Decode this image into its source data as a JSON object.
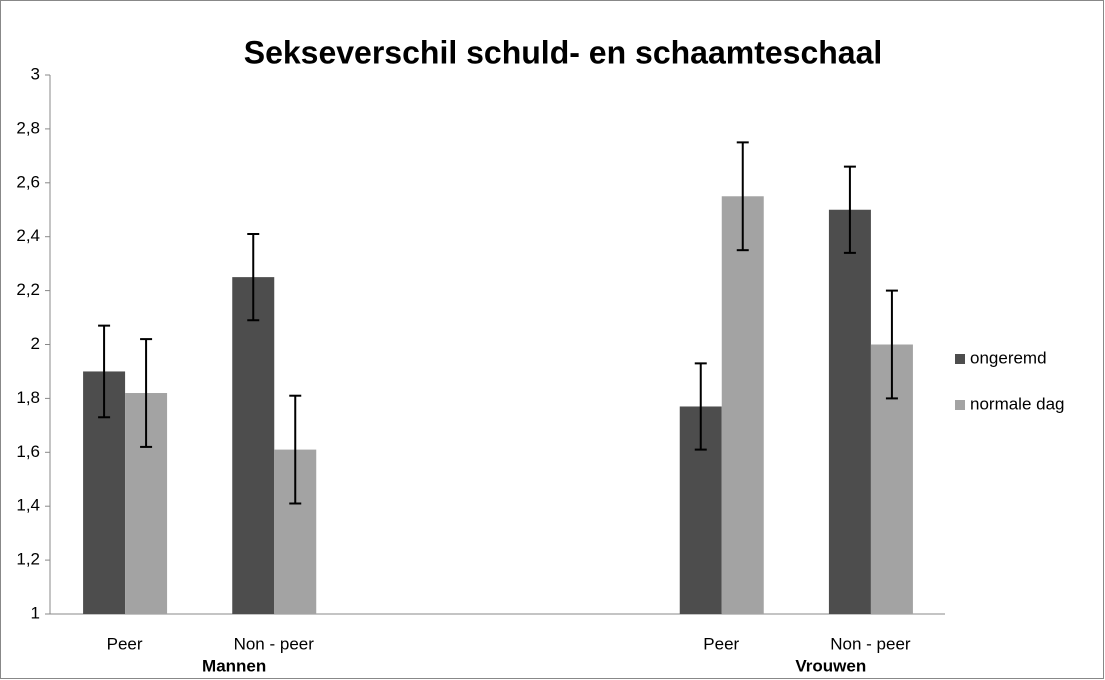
{
  "chart_data": {
    "type": "bar",
    "title": "Sekseverschil schuld- en schaamteschaal",
    "categories": [
      "Peer",
      "Non - peer",
      null,
      null,
      "Peer",
      "Non - peer"
    ],
    "groups": [
      "Mannen",
      "Vrouwen"
    ],
    "series": [
      {
        "name": "ongeremd",
        "color": "#4d4d4d",
        "values": [
          1.9,
          2.25,
          null,
          null,
          1.77,
          2.5
        ],
        "errors": [
          0.17,
          0.16,
          null,
          null,
          0.16,
          0.16
        ]
      },
      {
        "name": "normale dag",
        "color": "#a3a3a3",
        "values": [
          1.82,
          1.61,
          null,
          null,
          2.55,
          2.0
        ],
        "errors": [
          0.2,
          0.2,
          null,
          null,
          0.2,
          0.2
        ]
      }
    ],
    "ylim": [
      1,
      3
    ],
    "yticks": [
      1,
      {
        "value": 1.2,
        "label": "1,2"
      },
      {
        "value": 1.4,
        "label": "1,4"
      },
      {
        "value": 1.6,
        "label": "1,6"
      },
      {
        "value": 1.8,
        "label": "1,8"
      },
      2,
      {
        "value": 2.2,
        "label": "2,2"
      },
      {
        "value": 2.4,
        "label": "2,4"
      },
      {
        "value": 2.6,
        "label": "2,6"
      },
      {
        "value": 2.8,
        "label": "2,8"
      },
      3
    ],
    "legend": "right",
    "grid": false
  }
}
